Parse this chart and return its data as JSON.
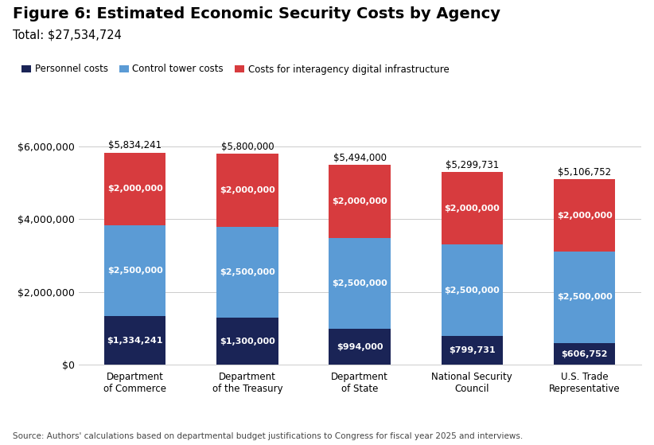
{
  "title": "Figure 6: Estimated Economic Security Costs by Agency",
  "subtitle": "Total: $27,534,724",
  "source": "Source: Authors' calculations based on departmental budget justifications to Congress for fiscal year 2025 and interviews.",
  "categories": [
    "Department\nof Commerce",
    "Department\nof the Treasury",
    "Department\nof State",
    "National Security\nCouncil",
    "U.S. Trade\nRepresentative"
  ],
  "personnel_costs": [
    1334241,
    1300000,
    994000,
    799731,
    606752
  ],
  "control_tower_costs": [
    2500000,
    2500000,
    2500000,
    2500000,
    2500000
  ],
  "interagency_costs": [
    2000000,
    2000000,
    2000000,
    2000000,
    2000000
  ],
  "totals": [
    5834241,
    5800000,
    5494000,
    5299731,
    5106752
  ],
  "bar_labels_personnel": [
    "$1,334,241",
    "$1,300,000",
    "$994,000",
    "$799,731",
    "$606,752"
  ],
  "bar_labels_control": [
    "$2,500,000",
    "$2,500,000",
    "$2,500,000",
    "$2,500,000",
    "$2,500,000"
  ],
  "bar_labels_interagency": [
    "$2,000,000",
    "$2,000,000",
    "$2,000,000",
    "$2,000,000",
    "$2,000,000"
  ],
  "total_labels": [
    "$5,834,241",
    "$5,800,000",
    "$5,494,000",
    "$5,299,731",
    "$5,106,752"
  ],
  "color_personnel": "#1a2456",
  "color_control": "#5b9bd5",
  "color_interagency": "#d73b3e",
  "legend_labels": [
    "Personnel costs",
    "Control tower costs",
    "Costs for interagency digital infrastructure"
  ],
  "ylim": [
    0,
    6600000
  ],
  "yticks": [
    0,
    2000000,
    4000000,
    6000000
  ],
  "ytick_labels": [
    "$0",
    "$2,000,000",
    "$4,000,000",
    "$6,000,000"
  ],
  "background_color": "#ffffff",
  "grid_color": "#cccccc",
  "title_fontsize": 14,
  "subtitle_fontsize": 10.5,
  "bar_width": 0.55
}
